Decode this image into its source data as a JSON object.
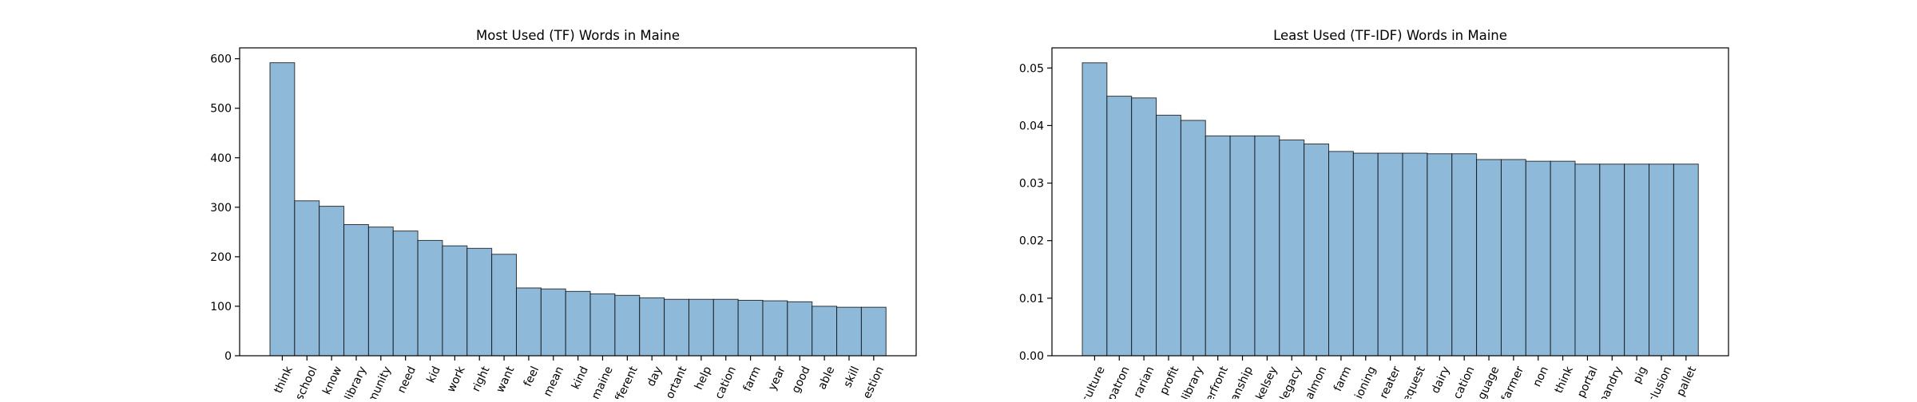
{
  "colors": {
    "bar_fill": "#8fb9d9",
    "bar_edge": "#000000",
    "background": "#ffffff"
  },
  "chart_data": [
    {
      "type": "bar",
      "title": "Most Used (TF) Words in Maine",
      "xlabel": "",
      "ylabel": "",
      "categories": [
        "think",
        "school",
        "know",
        "library",
        "munity",
        "need",
        "kid",
        "work",
        "right",
        "want",
        "feel",
        "mean",
        "kind",
        "maine",
        "fferent",
        "day",
        "ortant",
        "help",
        "cation",
        "farm",
        "year",
        "good",
        "able",
        "skill",
        "estion"
      ],
      "values": [
        592,
        313,
        302,
        265,
        260,
        252,
        233,
        222,
        217,
        205,
        137,
        135,
        130,
        125,
        122,
        117,
        114,
        114,
        114,
        112,
        111,
        109,
        100,
        98,
        98
      ],
      "ylim": [
        0,
        622
      ],
      "yticks": [
        0,
        100,
        200,
        300,
        400,
        500,
        600
      ],
      "ytick_labels": [
        "0",
        "100",
        "200",
        "300",
        "400",
        "500",
        "600"
      ],
      "grid": false,
      "legend": "none"
    },
    {
      "type": "bar",
      "title": "Least Used (TF-IDF) Words in Maine",
      "xlabel": "",
      "ylabel": "",
      "categories": [
        "culture",
        "patron",
        "rarian",
        "profit",
        "library",
        "erfront",
        "anship",
        "kelsey",
        "legacy",
        "almon",
        "farm",
        "ioning",
        "reater",
        "equest",
        "dairy",
        "cation",
        "guage",
        "farmer",
        "non",
        "think",
        "portal",
        "bandry",
        "pig",
        "clusion",
        "pallet"
      ],
      "values": [
        0.0509,
        0.0451,
        0.0448,
        0.0418,
        0.0409,
        0.0382,
        0.0382,
        0.0382,
        0.0375,
        0.0368,
        0.0355,
        0.0352,
        0.0352,
        0.0352,
        0.0351,
        0.0351,
        0.0341,
        0.0341,
        0.0338,
        0.0338,
        0.0333,
        0.0333,
        0.0333,
        0.0333,
        0.0333
      ],
      "ylim": [
        0,
        0.0535
      ],
      "yticks": [
        0,
        0.01,
        0.02,
        0.03,
        0.04,
        0.05
      ],
      "ytick_labels": [
        "0.00",
        "0.01",
        "0.02",
        "0.03",
        "0.04",
        "0.05"
      ],
      "grid": false,
      "legend": "none"
    }
  ]
}
